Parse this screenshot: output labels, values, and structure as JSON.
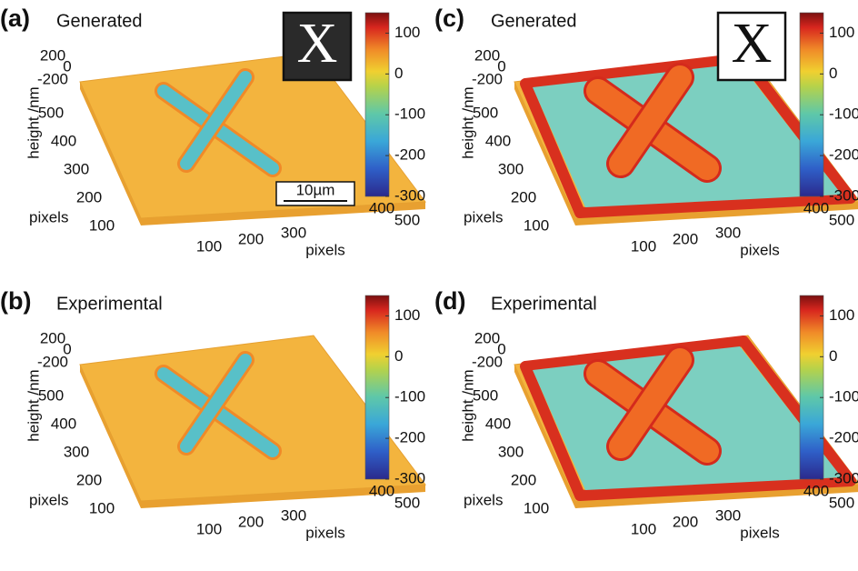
{
  "panels": [
    {
      "label": "(a)",
      "title": "Generated",
      "inset": "X",
      "inset_style": "dark",
      "scale_bar": "10µm",
      "z_label": "height /nm",
      "z_ticks": [
        200,
        0,
        -200
      ],
      "y_label": "pixels",
      "y_ticks": [
        500,
        400,
        300,
        200,
        100
      ],
      "x_label": "pixels",
      "x_ticks": [
        100,
        200,
        300,
        400,
        500
      ],
      "colorbar": {
        "lim": [
          -300,
          150
        ],
        "ticks": [
          100,
          0,
          -100,
          -200,
          -300
        ]
      },
      "relief": "low"
    },
    {
      "label": "(b)",
      "title": "Experimental",
      "z_label": "height /nm",
      "z_ticks": [
        200,
        0,
        -200
      ],
      "y_label": "pixels",
      "y_ticks": [
        500,
        400,
        300,
        200,
        100
      ],
      "x_label": "pixels",
      "x_ticks": [
        100,
        200,
        300,
        400,
        500
      ],
      "colorbar": {
        "lim": [
          -300,
          150
        ],
        "ticks": [
          100,
          0,
          -100,
          -200,
          -300
        ]
      },
      "relief": "low"
    },
    {
      "label": "(c)",
      "title": "Generated",
      "inset": "X",
      "inset_style": "light",
      "z_label": "height /nm",
      "z_ticks": [
        200,
        0,
        -200
      ],
      "y_label": "pixels",
      "y_ticks": [
        500,
        400,
        300,
        200,
        100
      ],
      "x_label": "pixels",
      "x_ticks": [
        100,
        200,
        300,
        400,
        500
      ],
      "colorbar": {
        "lim": [
          -300,
          150
        ],
        "ticks": [
          100,
          0,
          -100,
          -200,
          -300
        ]
      },
      "relief": "high"
    },
    {
      "label": "(d)",
      "title": "Experimental",
      "z_label": "height /nm",
      "z_ticks": [
        200,
        0,
        -200
      ],
      "y_label": "pixels",
      "y_ticks": [
        500,
        400,
        300,
        200,
        100
      ],
      "x_label": "pixels",
      "x_ticks": [
        100,
        200,
        300,
        400,
        500
      ],
      "colorbar": {
        "lim": [
          -300,
          150
        ],
        "ticks": [
          100,
          0,
          -100,
          -200,
          -300
        ]
      },
      "relief": "high"
    }
  ]
}
